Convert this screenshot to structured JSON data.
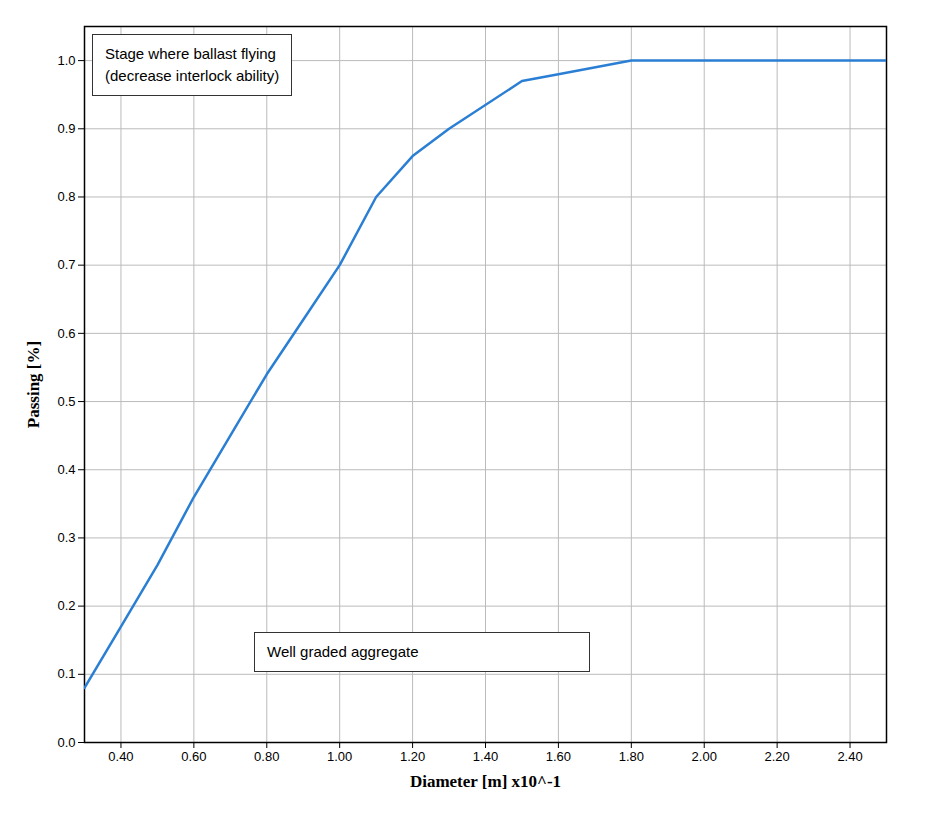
{
  "chart_data": {
    "type": "line",
    "x_label": "Diameter [m] x10^-1",
    "y_label": "Passing [%]",
    "x": [
      0.3,
      0.4,
      0.5,
      0.6,
      0.7,
      0.8,
      0.9,
      1.0,
      1.1,
      1.2,
      1.3,
      1.5,
      1.6,
      1.8,
      2.25,
      2.5
    ],
    "values": [
      0.08,
      0.17,
      0.26,
      0.36,
      0.45,
      0.54,
      0.62,
      0.7,
      0.8,
      0.86,
      0.9,
      0.97,
      0.98,
      1.0,
      1.0,
      1.0
    ],
    "color": "#2a7fd4",
    "xlim": [
      0.3,
      2.5
    ],
    "xticks": [
      {
        "value": 0.4,
        "label": "0.40"
      },
      {
        "value": 0.6,
        "label": "0.60"
      },
      {
        "value": 0.8,
        "label": "0.80"
      },
      {
        "value": 1.0,
        "label": "1.00"
      },
      {
        "value": 1.2,
        "label": "1.20"
      },
      {
        "value": 1.4,
        "label": "1.40"
      },
      {
        "value": 1.6,
        "label": "1.60"
      },
      {
        "value": 1.8,
        "label": "1.80"
      },
      {
        "value": 2.0,
        "label": "2.00"
      },
      {
        "value": 2.2,
        "label": "2.20"
      },
      {
        "value": 2.4,
        "label": "2.40"
      }
    ],
    "ylim": [
      0,
      1.05
    ],
    "yticks": [
      {
        "value": 0,
        "label": "0.0"
      },
      0.1,
      0.2,
      0.3,
      0.4,
      0.5,
      0.6,
      0.7,
      0.8,
      0.9,
      {
        "value": 1,
        "label": "1.0"
      }
    ],
    "grid": true,
    "annotations": [
      "Stage where ballast flying\n(decrease interlock ability)",
      "Well graded aggregate"
    ]
  }
}
